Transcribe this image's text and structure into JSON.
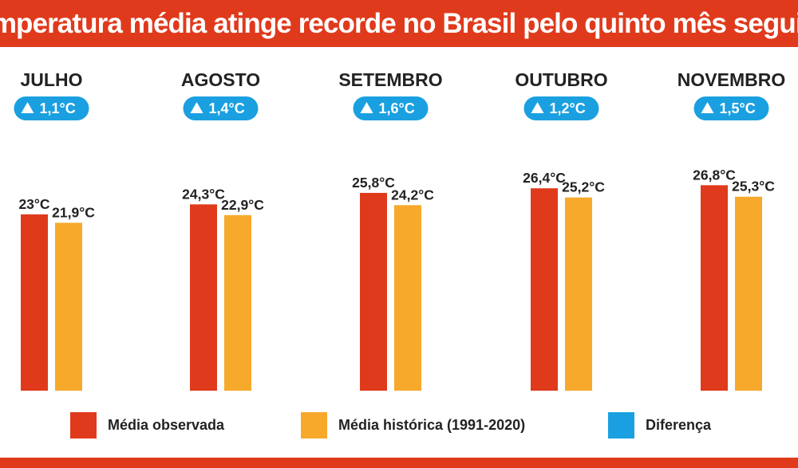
{
  "title": "Temperatura média atinge recorde no Brasil pelo quinto mês seguido",
  "colors": {
    "observed": "#e03a1c",
    "historical": "#f6a92b",
    "difference": "#1aa0e0",
    "title_bar": "#e03a1c"
  },
  "legend": {
    "observed": "Média observada",
    "historical": "Média histórica (1991-2020)",
    "difference": "Diferença"
  },
  "chart_data": {
    "type": "bar",
    "title": "Temperatura média atinge recorde no Brasil pelo quinto mês seguido",
    "categories": [
      "JULHO",
      "AGOSTO",
      "SETEMBRO",
      "OUTUBRO",
      "NOVEMBRO"
    ],
    "series": [
      {
        "name": "Média observada",
        "values": [
          23.0,
          24.3,
          25.8,
          26.4,
          26.8
        ],
        "labels": [
          "23°C",
          "24,3°C",
          "25,8°C",
          "26,4°C",
          "26,8°C"
        ]
      },
      {
        "name": "Média histórica (1991-2020)",
        "values": [
          21.9,
          22.9,
          24.2,
          25.2,
          25.3
        ],
        "labels": [
          "21,9°C",
          "22,9°C",
          "24,2°C",
          "25,2°C",
          "25,3°C"
        ]
      }
    ],
    "differences": [
      "1,1°C",
      "1,4°C",
      "1,6°C",
      "1,2°C",
      "1,5°C"
    ],
    "legend_position": "bottom",
    "grid": false
  }
}
